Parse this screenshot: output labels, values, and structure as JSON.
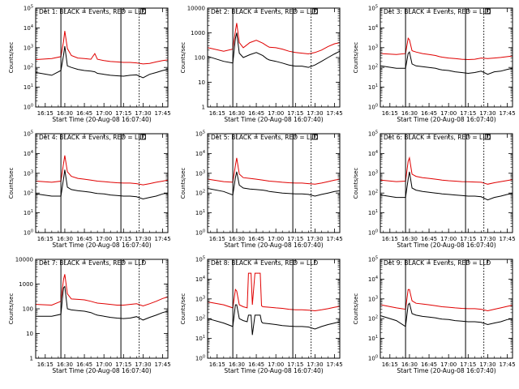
{
  "figure": {
    "xlabel": "Start Time (20-Aug-08 16:07:40)",
    "ylabel": "Counts/sec",
    "x_tick_labels": [
      "16:15",
      "16:30",
      "16:45",
      "17:00",
      "17:15",
      "17:30",
      "17:45"
    ],
    "colors": {
      "events": "#000000",
      "lld": "#e00000",
      "axes": "#000000"
    }
  },
  "chart_data": [
    {
      "type": "line",
      "title": "Det 1: BLACK = Events, RED = LLD",
      "x_range": [
        "16:07:40",
        "17:49"
      ],
      "y_scale": "log",
      "y_range": [
        1,
        100000
      ],
      "y_tick_labels": [
        "10^0",
        "10^1",
        "10^2",
        "10^3",
        "10^4",
        "10^5"
      ],
      "solid_markers": [
        "16:27",
        "17:13"
      ],
      "dotted_marker": "17:27",
      "box_marker": "17:30",
      "x": [
        "16:08",
        "16:20",
        "16:27",
        "16:29",
        "16:30",
        "16:32",
        "16:35",
        "16:40",
        "16:45",
        "16:50",
        "16:53",
        "16:55",
        "17:00",
        "17:05",
        "17:10",
        "17:15",
        "17:20",
        "17:25",
        "17:30",
        "17:35",
        "17:40",
        "17:45",
        "17:49"
      ],
      "series": [
        {
          "values": [
            250,
            280,
            350,
            2000,
            7000,
            900,
            400,
            300,
            280,
            260,
            500,
            260,
            220,
            200,
            190,
            180,
            180,
            170,
            150,
            160,
            190,
            220,
            240
          ]
        },
        {
          "values": [
            55,
            40,
            70,
            400,
            1200,
            120,
            100,
            80,
            70,
            65,
            60,
            50,
            45,
            40,
            38,
            36,
            40,
            42,
            30,
            45,
            55,
            70,
            80
          ]
        }
      ]
    },
    {
      "type": "line",
      "title": "Det 2: BLACK = Events, RED = LLD",
      "x_range": [
        "16:07:40",
        "17:49"
      ],
      "y_scale": "log",
      "y_range": [
        1,
        10000
      ],
      "y_tick_labels": [
        "1",
        "10",
        "100",
        "1000",
        "10000"
      ],
      "solid_markers": [
        "16:27",
        "17:13"
      ],
      "dotted_marker": "17:27",
      "box_marker": "17:30",
      "x": [
        "16:08",
        "16:20",
        "16:27",
        "16:29",
        "16:30",
        "16:32",
        "16:35",
        "16:40",
        "16:45",
        "16:50",
        "16:53",
        "16:55",
        "17:00",
        "17:05",
        "17:10",
        "17:15",
        "17:20",
        "17:25",
        "17:30",
        "17:35",
        "17:40",
        "17:45",
        "17:49"
      ],
      "series": [
        {
          "values": [
            250,
            180,
            220,
            1200,
            2500,
            400,
            250,
            400,
            500,
            380,
            300,
            260,
            250,
            220,
            180,
            160,
            150,
            140,
            160,
            200,
            280,
            360,
            400
          ]
        },
        {
          "values": [
            110,
            70,
            60,
            600,
            1000,
            150,
            100,
            130,
            160,
            120,
            90,
            80,
            70,
            60,
            50,
            45,
            45,
            40,
            50,
            70,
            100,
            140,
            180
          ]
        }
      ]
    },
    {
      "type": "line",
      "title": "Det 3: BLACK = Events, RED = LLD",
      "x_range": [
        "16:07:40",
        "17:49"
      ],
      "y_scale": "log",
      "y_range": [
        1,
        100000
      ],
      "y_tick_labels": [
        "10^0",
        "10^1",
        "10^2",
        "10^3",
        "10^4",
        "10^5"
      ],
      "solid_markers": [
        "16:27",
        "17:13"
      ],
      "dotted_marker": "17:27",
      "box_marker": "17:30",
      "x": [
        "16:08",
        "16:20",
        "16:27",
        "16:29",
        "16:30",
        "16:32",
        "16:35",
        "16:40",
        "16:45",
        "16:50",
        "16:53",
        "16:55",
        "17:00",
        "17:05",
        "17:10",
        "17:15",
        "17:20",
        "17:25",
        "17:30",
        "17:35",
        "17:40",
        "17:45",
        "17:49"
      ],
      "series": [
        {
          "values": [
            500,
            450,
            500,
            3000,
            2500,
            700,
            600,
            500,
            450,
            400,
            350,
            330,
            300,
            280,
            260,
            250,
            260,
            300,
            280,
            300,
            320,
            350,
            380
          ]
        },
        {
          "values": [
            120,
            90,
            90,
            500,
            600,
            150,
            120,
            110,
            100,
            90,
            80,
            75,
            70,
            60,
            55,
            50,
            55,
            65,
            45,
            60,
            65,
            80,
            90
          ]
        }
      ]
    },
    {
      "type": "line",
      "title": "Det 4: BLACK = Events, RED = LLD",
      "x_range": [
        "16:07:40",
        "17:49"
      ],
      "y_scale": "log",
      "y_range": [
        1,
        100000
      ],
      "y_tick_labels": [
        "10^0",
        "10^1",
        "10^2",
        "10^3",
        "10^4",
        "10^5"
      ],
      "solid_markers": [
        "16:27",
        "17:13"
      ],
      "dotted_marker": "17:27",
      "box_marker": "17:30",
      "x": [
        "16:08",
        "16:20",
        "16:27",
        "16:29",
        "16:30",
        "16:32",
        "16:35",
        "16:40",
        "16:45",
        "16:50",
        "16:53",
        "16:55",
        "17:00",
        "17:05",
        "17:10",
        "17:15",
        "17:20",
        "17:25",
        "17:30",
        "17:35",
        "17:40",
        "17:45",
        "17:49"
      ],
      "series": [
        {
          "values": [
            400,
            350,
            400,
            3000,
            8000,
            1200,
            700,
            550,
            500,
            450,
            420,
            400,
            380,
            350,
            330,
            320,
            320,
            300,
            260,
            300,
            350,
            400,
            450
          ]
        },
        {
          "values": [
            90,
            70,
            70,
            500,
            1500,
            200,
            150,
            130,
            120,
            110,
            100,
            95,
            90,
            80,
            75,
            70,
            70,
            65,
            50,
            60,
            70,
            90,
            100
          ]
        }
      ]
    },
    {
      "type": "line",
      "title": "Det 5: BLACK = Events, RED = LLD",
      "x_range": [
        "16:07:40",
        "17:49"
      ],
      "y_scale": "log",
      "y_range": [
        1,
        100000
      ],
      "y_tick_labels": [
        "10^0",
        "10^1",
        "10^2",
        "10^3",
        "10^4",
        "10^5"
      ],
      "solid_markers": [
        "16:27",
        "17:13"
      ],
      "dotted_marker": "17:27",
      "box_marker": "17:30",
      "x": [
        "16:08",
        "16:20",
        "16:27",
        "16:29",
        "16:30",
        "16:32",
        "16:35",
        "16:40",
        "16:45",
        "16:50",
        "16:53",
        "16:55",
        "17:00",
        "17:05",
        "17:10",
        "17:15",
        "17:20",
        "17:25",
        "17:30",
        "17:35",
        "17:40",
        "17:45",
        "17:49"
      ],
      "series": [
        {
          "values": [
            500,
            380,
            350,
            2500,
            6000,
            900,
            600,
            550,
            500,
            450,
            420,
            400,
            380,
            350,
            330,
            320,
            320,
            300,
            280,
            320,
            380,
            450,
            500
          ]
        },
        {
          "values": [
            170,
            120,
            80,
            600,
            1200,
            250,
            180,
            160,
            150,
            140,
            130,
            120,
            110,
            100,
            95,
            90,
            90,
            85,
            70,
            85,
            100,
            120,
            130
          ]
        }
      ]
    },
    {
      "type": "line",
      "title": "Det 6: BLACK = Events, RED = LLD",
      "x_range": [
        "16:07:40",
        "17:49"
      ],
      "y_scale": "log",
      "y_range": [
        1,
        100000
      ],
      "y_tick_labels": [
        "10^0",
        "10^1",
        "10^2",
        "10^3",
        "10^4",
        "10^5"
      ],
      "solid_markers": [
        "16:27",
        "17:13"
      ],
      "dotted_marker": "17:27",
      "box_marker": "17:30",
      "x": [
        "16:08",
        "16:20",
        "16:27",
        "16:29",
        "16:30",
        "16:32",
        "16:35",
        "16:40",
        "16:45",
        "16:50",
        "16:53",
        "16:55",
        "17:00",
        "17:05",
        "17:10",
        "17:15",
        "17:20",
        "17:25",
        "17:30",
        "17:35",
        "17:40",
        "17:45",
        "17:49"
      ],
      "series": [
        {
          "values": [
            450,
            380,
            400,
            4000,
            6000,
            900,
            700,
            600,
            550,
            500,
            470,
            450,
            420,
            400,
            380,
            370,
            360,
            350,
            280,
            330,
            380,
            430,
            480
          ]
        },
        {
          "values": [
            80,
            60,
            60,
            500,
            1200,
            180,
            140,
            120,
            110,
            100,
            95,
            90,
            85,
            80,
            75,
            70,
            70,
            65,
            45,
            60,
            70,
            85,
            95
          ]
        }
      ]
    },
    {
      "type": "line",
      "title": "Det 7: BLACK = Events, RED = LLD",
      "x_range": [
        "16:07:40",
        "17:49"
      ],
      "y_scale": "log",
      "y_range": [
        1,
        10000
      ],
      "y_tick_labels": [
        "1",
        "10",
        "100",
        "1000",
        "10000"
      ],
      "solid_markers": [
        "16:27",
        "17:13"
      ],
      "dotted_marker": "17:27",
      "box_marker": null,
      "x": [
        "16:08",
        "16:20",
        "16:27",
        "16:29",
        "16:30",
        "16:32",
        "16:35",
        "16:40",
        "16:45",
        "16:50",
        "16:53",
        "16:55",
        "17:00",
        "17:05",
        "17:10",
        "17:15",
        "17:20",
        "17:25",
        "17:30",
        "17:35",
        "17:40",
        "17:45",
        "17:49"
      ],
      "series": [
        {
          "values": [
            150,
            140,
            200,
            1500,
            2500,
            400,
            250,
            240,
            230,
            200,
            180,
            170,
            160,
            150,
            140,
            140,
            150,
            160,
            130,
            160,
            200,
            260,
            300
          ]
        },
        {
          "values": [
            50,
            50,
            60,
            700,
            800,
            100,
            90,
            85,
            80,
            70,
            60,
            55,
            50,
            45,
            42,
            40,
            42,
            48,
            35,
            45,
            55,
            70,
            80
          ]
        }
      ]
    },
    {
      "type": "line",
      "title": "Det 8: BLACK = Events, RED = LLD",
      "x_range": [
        "16:07:40",
        "17:49"
      ],
      "y_scale": "log",
      "y_range": [
        1,
        100000
      ],
      "y_tick_labels": [
        "10^0",
        "10^1",
        "10^2",
        "10^3",
        "10^4",
        "10^5"
      ],
      "solid_markers": [
        "16:27",
        "17:13"
      ],
      "dotted_marker": "17:27",
      "box_marker": null,
      "x": [
        "16:08",
        "16:20",
        "16:27",
        "16:29",
        "16:30",
        "16:32",
        "16:35",
        "16:38",
        "16:39",
        "16:41",
        "16:42",
        "16:44",
        "16:45",
        "16:48",
        "16:49",
        "16:50",
        "16:55",
        "17:00",
        "17:05",
        "17:10",
        "17:15",
        "17:20",
        "17:25",
        "17:30",
        "17:35",
        "17:40",
        "17:45",
        "17:49"
      ],
      "series": [
        {
          "values": [
            700,
            500,
            350,
            3000,
            2500,
            500,
            400,
            350,
            20000,
            20000,
            500,
            20000,
            20000,
            20000,
            450,
            400,
            380,
            350,
            330,
            300,
            280,
            280,
            270,
            250,
            280,
            320,
            380,
            420
          ]
        },
        {
          "values": [
            100,
            60,
            40,
            500,
            500,
            100,
            80,
            70,
            150,
            150,
            15,
            150,
            150,
            150,
            70,
            60,
            55,
            50,
            45,
            42,
            40,
            40,
            38,
            30,
            40,
            50,
            60,
            70
          ]
        }
      ]
    },
    {
      "type": "line",
      "title": "Det 9: BLACK = Events, RED = LLD",
      "x_range": [
        "16:07:40",
        "17:49"
      ],
      "y_scale": "log",
      "y_range": [
        1,
        100000
      ],
      "y_tick_labels": [
        "10^0",
        "10^1",
        "10^2",
        "10^3",
        "10^4",
        "10^5"
      ],
      "solid_markers": [
        "16:27",
        "17:13"
      ],
      "dotted_marker": "17:27",
      "box_marker": null,
      "x": [
        "16:08",
        "16:20",
        "16:27",
        "16:29",
        "16:30",
        "16:32",
        "16:35",
        "16:40",
        "16:45",
        "16:50",
        "16:53",
        "16:55",
        "17:00",
        "17:05",
        "17:10",
        "17:15",
        "17:20",
        "17:25",
        "17:30",
        "17:35",
        "17:40",
        "17:45",
        "17:49"
      ],
      "series": [
        {
          "values": [
            500,
            350,
            300,
            3000,
            3000,
            800,
            600,
            550,
            500,
            450,
            420,
            400,
            380,
            350,
            330,
            320,
            320,
            300,
            250,
            300,
            350,
            420,
            480
          ]
        },
        {
          "values": [
            140,
            80,
            40,
            500,
            600,
            180,
            150,
            130,
            120,
            110,
            100,
            95,
            90,
            80,
            75,
            70,
            70,
            65,
            50,
            60,
            70,
            90,
            100
          ]
        }
      ]
    }
  ]
}
